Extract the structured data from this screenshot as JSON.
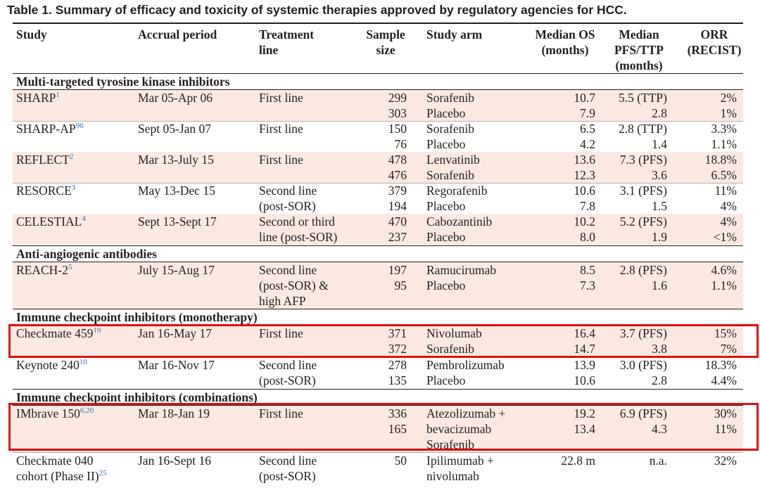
{
  "caption": "Table 1. Summary of efficacy and toxicity of systemic therapies approved by regulatory agencies for HCC.",
  "headers": {
    "study": "Study",
    "accrual": "Accrual period",
    "line": "Treatment\nline",
    "sample": "Sample\nsize",
    "arm": "Study arm",
    "os": "Median OS\n(months)",
    "pfs": "Median\nPFS/TTP\n(months)",
    "orr": "ORR\n(RECIST)"
  },
  "sections": [
    "Multi-targeted tyrosine kinase inhibitors",
    "Anti-angiogenic antibodies",
    "Immune checkpoint inhibitors (monotherapy)",
    "Immune checkpoint inhibitors (combinations)"
  ],
  "rows": [
    {
      "study": "SHARP",
      "ref": "1",
      "accrual": "Mar 05-Apr 06",
      "line": "First line",
      "sample": "299\n303",
      "arm": "Sorafenib\nPlacebo",
      "os": "10.7\n7.9",
      "pfs": "5.5 (TTP)\n2.8",
      "orr": "2%\n1%"
    },
    {
      "study": "SHARP-AP",
      "ref": "96",
      "accrual": "Sept 05-Jan 07",
      "line": "First line",
      "sample": "150\n76",
      "arm": "Sorafenib\nPlacebo",
      "os": "6.5\n4.2",
      "pfs": "2.8 (TTP)\n1.4",
      "orr": "3.3%\n1.1%"
    },
    {
      "study": "REFLECT",
      "ref": "2",
      "accrual": "Mar 13-July 15",
      "line": "First line",
      "sample": "478\n476",
      "arm": "Lenvatinib\nSorafenib",
      "os": "13.6\n12.3",
      "pfs": "7.3 (PFS)\n3.6",
      "orr": "18.8%\n6.5%"
    },
    {
      "study": "RESORCE",
      "ref": "3",
      "accrual": "May 13-Dec 15",
      "line": "Second line\n(post-SOR)",
      "sample": "379\n194",
      "arm": "Regorafenib\nPlacebo",
      "os": "10.6\n7.8",
      "pfs": "3.1 (PFS)\n1.5",
      "orr": "11%\n4%"
    },
    {
      "study": "CELESTIAL",
      "ref": "4",
      "accrual": "Sept 13-Sept 17",
      "line": "Second or third\nline (post-SOR)",
      "sample": "470\n237",
      "arm": "Cabozantinib\nPlacebo",
      "os": "10.2\n8.0",
      "pfs": "5.2 (PFS)\n1.9",
      "orr": "4%\n<1%"
    },
    {
      "study": "REACH-2",
      "ref": "5",
      "accrual": "July 15-Aug 17",
      "line": "Second line\n(post-SOR) &\nhigh AFP",
      "sample": "197\n95",
      "arm": "Ramucirumab\nPlacebo",
      "os": "8.5\n7.3",
      "pfs": "2.8 (PFS)\n1.6",
      "orr": "4.6%\n1.1%"
    },
    {
      "study": "Checkmate 459",
      "ref": "19",
      "accrual": "Jan 16-May 17",
      "line": "First line",
      "sample": "371\n372",
      "arm": "Nivolumab\nSorafenib",
      "os": "16.4\n14.7",
      "pfs": "3.7 (PFS)\n3.8",
      "orr": "15%\n7%"
    },
    {
      "study": "Keynote 240",
      "ref": "10",
      "accrual": "Mar 16-Nov 17",
      "line": "Second line\n(post-SOR)",
      "sample": "278\n135",
      "arm": "Pembrolizumab\nPlacebo",
      "os": "13.9\n10.6",
      "pfs": "3.0 (PFS)\n2.8",
      "orr": "18.3%\n4.4%"
    },
    {
      "study": "IMbrave 150",
      "ref": "6,20",
      "accrual": "Mar 18-Jan 19",
      "line": "First line",
      "sample": "336\n165",
      "arm": "Atezolizumab +\nbevacizumab\nSorafenib",
      "os": "19.2\n13.4",
      "pfs": "6.9 (PFS)\n4.3",
      "orr": "30%\n11%"
    },
    {
      "study": "Checkmate 040\ncohort (Phase II)",
      "ref": "25",
      "accrual": "Jan 16-Sept 16",
      "line": "Second line\n(post-SOR)",
      "sample": "50",
      "arm": "Ipilimumab +\nnivolumab",
      "os": "22.8 m",
      "pfs": "n.a.",
      "orr": "32%"
    }
  ],
  "colors": {
    "shade": "#fbe9e1",
    "highlight": "#e01010",
    "ref_link": "#2f6fb2"
  }
}
